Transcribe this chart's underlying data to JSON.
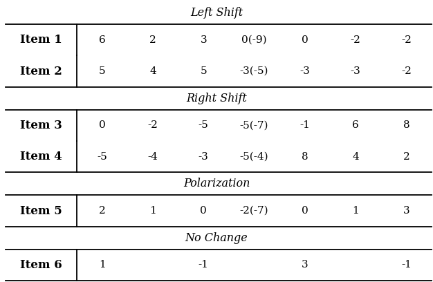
{
  "sections": [
    {
      "label": "Left Shift"
    },
    {
      "label": "Right Shift"
    },
    {
      "label": "Polarization"
    },
    {
      "label": "No Change"
    }
  ],
  "rows": [
    {
      "item": "Item 1",
      "values": [
        "6",
        "2",
        "3",
        "0(-9)",
        "0",
        "-2",
        "-2"
      ],
      "section": 0
    },
    {
      "item": "Item 2",
      "values": [
        "5",
        "4",
        "5",
        "-3(-5)",
        "-3",
        "-3",
        "-2"
      ],
      "section": 0
    },
    {
      "item": "Item 3",
      "values": [
        "0",
        "-2",
        "-5",
        "-5(-7)",
        "-1",
        "6",
        "8"
      ],
      "section": 1
    },
    {
      "item": "Item 4",
      "values": [
        "-5",
        "-4",
        "-3",
        "-5(-4)",
        "8",
        "4",
        "2"
      ],
      "section": 1
    },
    {
      "item": "Item 5",
      "values": [
        "2",
        "1",
        "0",
        "-2(-7)",
        "0",
        "1",
        "3"
      ],
      "section": 2
    },
    {
      "item": "Item 6",
      "values": [
        "1",
        "",
        "-1",
        "",
        "3",
        "",
        "-1"
      ],
      "section": 3
    }
  ],
  "num_value_cols": 7,
  "bg_color": "#ffffff",
  "text_color": "#000000",
  "font_size_header": 11.5,
  "font_size_cell": 11,
  "font_size_item": 12
}
